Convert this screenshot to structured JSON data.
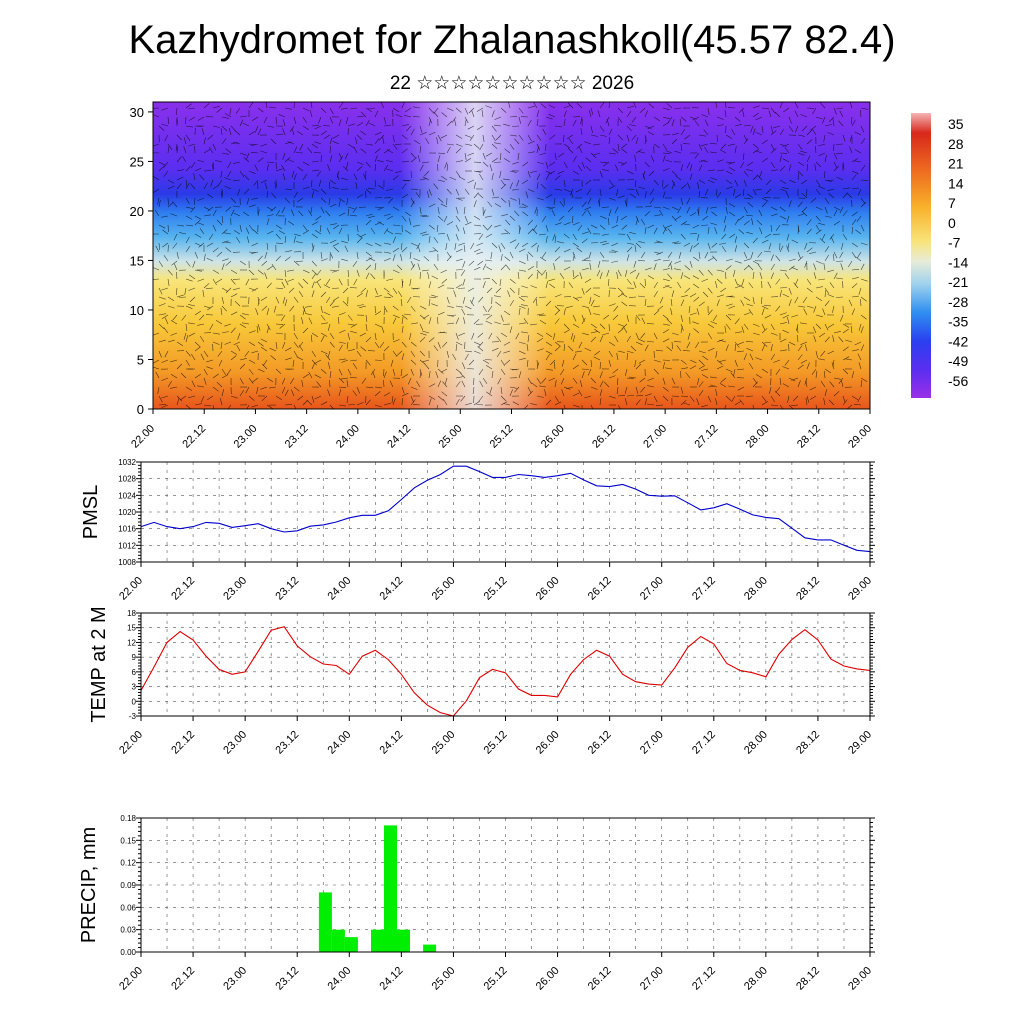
{
  "header": {
    "title": "Kazhydromet for Zhalanashkoll(45.57 82.4)",
    "subtitle": "22 ☆☆☆☆☆☆☆☆☆☆ 2026"
  },
  "colors": {
    "pmsl_line": "#0000cc",
    "temp_line": "#dd0000",
    "precip_bar": "#00ee00",
    "cross_section_palette": [
      "#9a2fe8",
      "#6a2ef0",
      "#3a30f0",
      "#2a5cf2",
      "#2f8ef0",
      "#4fb6ec",
      "#9fd2ee",
      "#e8ecd8",
      "#f8e47a",
      "#f8cf3a",
      "#f8b12a",
      "#f39224",
      "#ee7220",
      "#e55020",
      "#d8281c"
    ]
  },
  "chart_data": [
    {
      "type": "heatmap",
      "name": "vertical cross-section",
      "yticks": [
        0,
        5,
        10,
        15,
        20,
        25,
        30
      ],
      "ylim": [
        0,
        31
      ],
      "xticks": [
        "22.00",
        "22.12",
        "23.00",
        "23.12",
        "24.00",
        "24.12",
        "25.00",
        "25.12",
        "26.00",
        "26.12",
        "27.00",
        "27.12",
        "28.00",
        "28.12",
        "29.00"
      ],
      "colorbar": {
        "labels": [
          "35",
          "28",
          "21",
          "14",
          "7",
          "0",
          "-7",
          "-14",
          "-21",
          "-28",
          "-35",
          "-42",
          "-49",
          "-56"
        ],
        "range": [
          -63,
          42
        ]
      }
    },
    {
      "type": "line",
      "ylabel": "PMSL",
      "ylim": [
        1008,
        1032
      ],
      "yticks": [
        "1008",
        "1012",
        "1016",
        "1020",
        "1024",
        "1028",
        "1032"
      ],
      "xticks": [
        "22.00",
        "22.12",
        "23.00",
        "23.12",
        "24.00",
        "24.12",
        "25.00",
        "25.12",
        "26.00",
        "26.12",
        "27.00",
        "27.12",
        "28.00",
        "28.12",
        "29.00"
      ],
      "x": [
        0,
        3,
        6,
        9,
        12,
        15,
        18,
        21,
        24,
        27,
        30,
        33,
        36,
        39,
        42,
        45,
        48,
        51,
        54,
        57,
        60,
        63,
        66,
        69,
        72,
        75,
        78,
        81,
        84,
        87,
        90,
        93,
        96,
        99,
        102,
        105,
        108,
        111,
        114,
        117,
        120,
        123,
        126,
        129,
        132,
        135,
        138,
        141,
        144,
        147,
        150,
        153,
        156,
        159,
        162,
        165,
        168
      ],
      "values": [
        1016.5,
        1017.5,
        1016.5,
        1016,
        1016.5,
        1017.5,
        1017.3,
        1016.3,
        1016.7,
        1017.2,
        1016,
        1015.2,
        1015.5,
        1016.6,
        1016.9,
        1017.6,
        1018.6,
        1019.2,
        1019.2,
        1020.3,
        1023,
        1025.8,
        1027.6,
        1029,
        1031,
        1031,
        1029.7,
        1028.3,
        1028.3,
        1029,
        1028.7,
        1028.3,
        1028.7,
        1029.3,
        1027.7,
        1026.3,
        1026.1,
        1026.6,
        1025.5,
        1024,
        1023.8,
        1023.9,
        1022.2,
        1020.5,
        1021,
        1022,
        1020.7,
        1019.3,
        1018.7,
        1018.4,
        1016.1,
        1013.8,
        1013.3,
        1013.3,
        1012,
        1010.8,
        1010.5
      ]
    },
    {
      "type": "line",
      "ylabel": "TEMP at 2 M",
      "ylim": [
        -3,
        18
      ],
      "yticks": [
        "-3",
        "0",
        "3",
        "6",
        "9",
        "12",
        "15",
        "18"
      ],
      "xticks": [
        "22.00",
        "22.12",
        "23.00",
        "23.12",
        "24.00",
        "24.12",
        "25.00",
        "25.12",
        "26.00",
        "26.12",
        "27.00",
        "27.12",
        "28.00",
        "28.12",
        "29.00"
      ],
      "x": [
        0,
        3,
        6,
        9,
        12,
        15,
        18,
        21,
        24,
        27,
        30,
        33,
        36,
        39,
        42,
        45,
        48,
        51,
        54,
        57,
        60,
        63,
        66,
        69,
        72,
        75,
        78,
        81,
        84,
        87,
        90,
        93,
        96,
        99,
        102,
        105,
        108,
        111,
        114,
        117,
        120,
        123,
        126,
        129,
        132,
        135,
        138,
        141,
        144,
        147,
        150,
        153,
        156,
        159,
        162,
        165,
        168
      ],
      "values": [
        2.2,
        7,
        12,
        14.2,
        12.5,
        9.2,
        6.5,
        5.5,
        6,
        10.2,
        14.5,
        15.2,
        11.3,
        9.1,
        7.6,
        7.3,
        5.5,
        9.2,
        10.4,
        8.5,
        5.5,
        1.7,
        -0.8,
        -2.3,
        -3,
        0.1,
        4.8,
        6.5,
        5.8,
        2.5,
        1.2,
        1.2,
        0.9,
        5.5,
        8.5,
        10.4,
        9.2,
        5.5,
        4,
        3.5,
        3.3,
        6.8,
        11,
        13.2,
        11.7,
        7.7,
        6.3,
        5.8,
        5,
        9.6,
        12.6,
        14.6,
        12.5,
        8.6,
        7.2,
        6.6,
        6.3
      ]
    },
    {
      "type": "bar",
      "ylabel": "PRECIP, mm",
      "ylim": [
        0,
        0.18
      ],
      "yticks": [
        "0.00",
        "0.03",
        "0.06",
        "0.09",
        "0.12",
        "0.15",
        "0.18"
      ],
      "xticks": [
        "22.00",
        "22.12",
        "23.00",
        "23.12",
        "24.00",
        "24.12",
        "25.00",
        "25.12",
        "26.00",
        "26.12",
        "27.00",
        "27.12",
        "28.00",
        "28.12",
        "29.00"
      ],
      "bars": [
        {
          "start": 41,
          "end": 44,
          "value": 0.08
        },
        {
          "start": 44,
          "end": 47,
          "value": 0.03
        },
        {
          "start": 47,
          "end": 50,
          "value": 0.02
        },
        {
          "start": 53,
          "end": 56,
          "value": 0.03
        },
        {
          "start": 56,
          "end": 59,
          "value": 0.17
        },
        {
          "start": 59,
          "end": 62,
          "value": 0.03
        },
        {
          "start": 65,
          "end": 68,
          "value": 0.01
        }
      ]
    }
  ]
}
